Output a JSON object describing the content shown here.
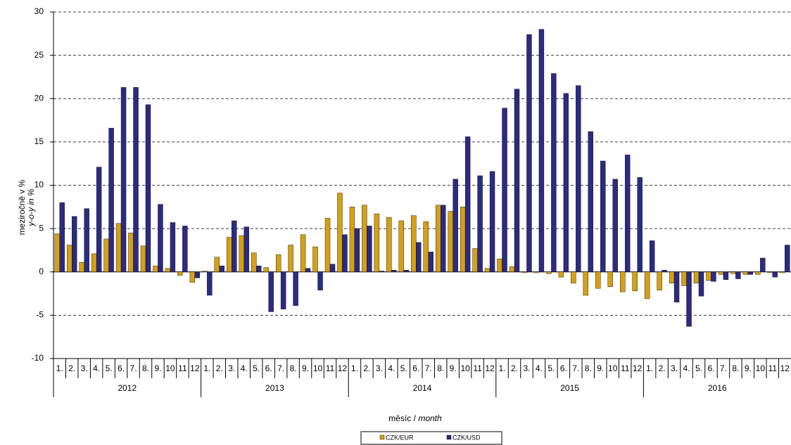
{
  "chart_data": {
    "type": "bar",
    "y_label": "meziročně v %",
    "y_label_en_prefix": "y-o-y ",
    "y_label_en_italic": "in %",
    "x_label": "měsíc",
    "x_label_sep": " / ",
    "x_label_en": "month",
    "categories": [
      "1.",
      "2.",
      "3.",
      "4.",
      "5.",
      "6.",
      "7.",
      "8.",
      "9.",
      "10",
      "11",
      "12",
      "1.",
      "2.",
      "3.",
      "4.",
      "5.",
      "6.",
      "7.",
      "8.",
      "9.",
      "10",
      "11",
      "12",
      "1.",
      "2.",
      "3.",
      "4.",
      "5.",
      "6.",
      "7.",
      "8.",
      "9.",
      "10",
      "11",
      "12",
      "1.",
      "2.",
      "3.",
      "4.",
      "5.",
      "6.",
      "7.",
      "8.",
      "9.",
      "10",
      "11",
      "12",
      "1.",
      "2.",
      "3.",
      "4.",
      "5.",
      "6.",
      "7.",
      "8.",
      "9.",
      "10",
      "11",
      "12"
    ],
    "category_groups": [
      "2012",
      "2013",
      "2014",
      "2015",
      "2016"
    ],
    "series": [
      {
        "name": "CZK/EUR",
        "color": "#d4a017",
        "values": [
          4.4,
          3.1,
          1.1,
          2.1,
          3.8,
          5.6,
          4.5,
          3.0,
          0.7,
          0.4,
          -0.4,
          -1.2,
          0.1,
          1.7,
          4.0,
          4.2,
          2.2,
          0.5,
          2.0,
          3.1,
          4.3,
          2.9,
          6.2,
          9.1,
          7.5,
          7.7,
          6.7,
          6.3,
          5.9,
          6.5,
          5.8,
          7.7,
          7.0,
          7.5,
          2.7,
          0.4,
          1.5,
          0.6,
          -0.1,
          -0.1,
          -0.2,
          -0.6,
          -1.3,
          -2.7,
          -1.9,
          -1.7,
          -2.3,
          -2.2,
          -3.1,
          -2.1,
          -1.3,
          -1.6,
          -1.3,
          -1.0,
          -0.3,
          -0.2,
          -0.3,
          -0.3,
          -0.1,
          -0.1
        ]
      },
      {
        "name": "CZK/USD",
        "color": "#2b2b80",
        "values": [
          8.0,
          6.4,
          7.3,
          12.1,
          16.6,
          21.3,
          21.3,
          19.3,
          7.8,
          5.7,
          5.3,
          -0.7,
          -2.7,
          0.7,
          5.9,
          5.2,
          0.7,
          -4.6,
          -4.3,
          -3.9,
          0.4,
          -2.1,
          0.9,
          4.3,
          5.0,
          5.3,
          0.1,
          0.2,
          0.2,
          3.4,
          2.3,
          7.7,
          10.7,
          15.6,
          11.1,
          11.6,
          18.9,
          21.1,
          27.4,
          28.0,
          22.9,
          20.6,
          21.5,
          16.2,
          12.8,
          10.7,
          13.5,
          10.9,
          3.6,
          0.2,
          -3.5,
          -6.3,
          -2.8,
          -1.1,
          -0.9,
          -0.8,
          -0.3,
          1.6,
          -0.6,
          3.1
        ]
      }
    ],
    "ylim": [
      -10,
      30
    ],
    "yticks": [
      -10,
      -5,
      0,
      5,
      10,
      15,
      20,
      25,
      30
    ],
    "grid": true
  }
}
